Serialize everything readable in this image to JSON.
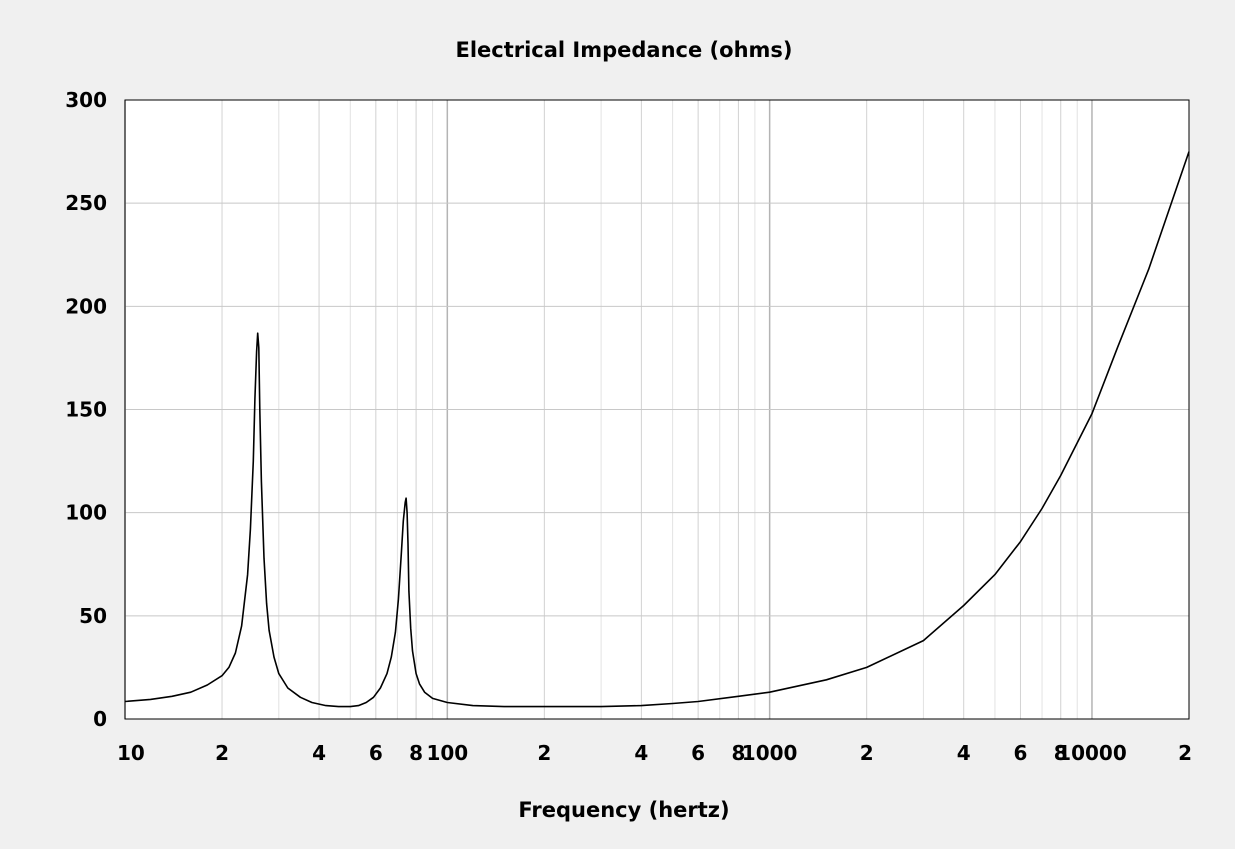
{
  "chart_data": {
    "type": "line",
    "title": "Electrical Impedance (ohms)",
    "xlabel": "Frequency (hertz)",
    "ylabel": "",
    "x_scale": "log",
    "xlim": [
      10,
      20000
    ],
    "ylim": [
      0,
      300
    ],
    "grid": true,
    "legend": "none",
    "line_color": "#000000",
    "background_color": "#ffffff",
    "grid_color": "#c8c8c8",
    "x_ticks": [
      {
        "value": 10,
        "label": "10"
      },
      {
        "value": 20,
        "label": "2"
      },
      {
        "value": 40,
        "label": "4"
      },
      {
        "value": 60,
        "label": "6"
      },
      {
        "value": 80,
        "label": "8"
      },
      {
        "value": 100,
        "label": "100"
      },
      {
        "value": 200,
        "label": "2"
      },
      {
        "value": 400,
        "label": "4"
      },
      {
        "value": 600,
        "label": "6"
      },
      {
        "value": 800,
        "label": "8"
      },
      {
        "value": 1000,
        "label": "1000"
      },
      {
        "value": 2000,
        "label": "2"
      },
      {
        "value": 4000,
        "label": "4"
      },
      {
        "value": 6000,
        "label": "6"
      },
      {
        "value": 8000,
        "label": "8"
      },
      {
        "value": 10000,
        "label": "10000"
      },
      {
        "value": 20000,
        "label": "2"
      }
    ],
    "y_ticks": [
      {
        "value": 0,
        "label": "0"
      },
      {
        "value": 50,
        "label": "50"
      },
      {
        "value": 100,
        "label": "100"
      },
      {
        "value": 150,
        "label": "150"
      },
      {
        "value": 200,
        "label": "200"
      },
      {
        "value": 250,
        "label": "250"
      },
      {
        "value": 300,
        "label": "300"
      }
    ],
    "minor_gridlines_x": [
      30,
      50,
      70,
      90,
      300,
      500,
      700,
      900,
      3000,
      5000,
      7000,
      9000
    ],
    "series": [
      {
        "x": [
          10,
          12,
          14,
          16,
          18,
          20,
          21,
          22,
          23,
          24,
          24.5,
          25,
          25.3,
          25.6,
          25.8,
          26,
          26.2,
          26.5,
          27,
          27.5,
          28,
          29,
          30,
          32,
          35,
          38,
          42,
          46,
          50,
          53,
          56,
          59,
          62,
          65,
          67,
          69,
          70.5,
          72,
          73,
          74,
          74.5,
          75,
          75.5,
          76,
          77,
          78,
          80,
          82,
          85,
          90,
          100,
          120,
          150,
          200,
          300,
          400,
          500,
          600,
          800,
          1000,
          1500,
          2000,
          3000,
          4000,
          5000,
          6000,
          7000,
          8000,
          10000,
          12000,
          15000,
          20000
        ],
        "y": [
          8.5,
          9.5,
          11,
          13,
          16.5,
          21,
          25,
          32,
          45,
          70,
          92,
          125,
          155,
          178,
          187,
          180,
          150,
          115,
          78,
          56,
          43,
          30,
          22,
          15,
          10.5,
          8,
          6.5,
          6,
          6,
          6.5,
          8,
          10.5,
          15,
          22,
          30,
          42,
          58,
          80,
          96,
          105,
          107,
          100,
          85,
          62,
          44,
          33,
          22,
          17,
          13,
          10,
          8,
          6.5,
          6,
          6,
          6,
          6.5,
          7.5,
          8.5,
          11,
          13,
          19,
          25,
          38,
          55,
          70,
          86,
          102,
          118,
          148,
          180,
          218,
          275
        ]
      }
    ]
  }
}
